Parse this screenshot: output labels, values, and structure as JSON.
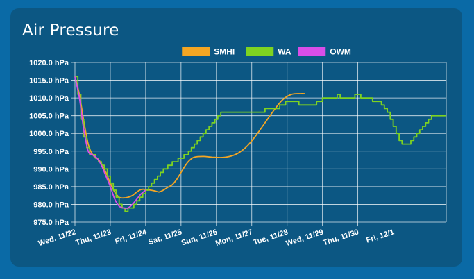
{
  "card": {
    "title": "Air Pressure"
  },
  "colors": {
    "page_bg": "#0a6aa6",
    "card_bg": "#0c5783",
    "grid": "#ffffff",
    "text": "#ffffff"
  },
  "chart_data": {
    "type": "line",
    "title": "Air Pressure",
    "xlabel": "",
    "ylabel": "",
    "grid": true,
    "legend_position": "top-center",
    "y_unit": "hPa",
    "ylim": [
      975.0,
      1020.0
    ],
    "y_ticks": [
      "1020.0 hPa",
      "1015.0 hPa",
      "1010.0 hPa",
      "1005.0 hPa",
      "1000.0 hPa",
      "995.0 hPa",
      "990.0 hPa",
      "985.0 hPa",
      "980.0 hPa",
      "975.0 hPa"
    ],
    "y_tick_values": [
      1020,
      1015,
      1010,
      1005,
      1000,
      995,
      990,
      985,
      980,
      975
    ],
    "xlim": [
      "2023-11-22T00:00",
      "2023-12-02T12:00"
    ],
    "x_ticks": [
      "Wed, 11/22",
      "Thu, 11/23",
      "Fri, 11/24",
      "Sat, 11/25",
      "Sun, 11/26",
      "Mon, 11/27",
      "Tue, 11/28",
      "Wed, 11/29",
      "Thu, 11/30",
      "Fri, 12/1"
    ],
    "x_tick_values": [
      "2023-11-22T00:00",
      "2023-11-23T00:00",
      "2023-11-24T00:00",
      "2023-11-25T00:00",
      "2023-11-26T00:00",
      "2023-11-27T00:00",
      "2023-11-28T00:00",
      "2023-11-29T00:00",
      "2023-11-30T00:00",
      "2023-12-01T00:00"
    ],
    "series": [
      {
        "name": "SMHI",
        "color": "#f5a623",
        "step": false,
        "points": [
          [
            "2023-11-22T00:00",
            1016.0
          ],
          [
            "2023-11-22T03:00",
            1011.0
          ],
          [
            "2023-11-22T06:00",
            1003.5
          ],
          [
            "2023-11-22T09:00",
            997.0
          ],
          [
            "2023-11-22T12:00",
            994.0
          ],
          [
            "2023-11-22T15:00",
            993.0
          ],
          [
            "2023-11-22T18:00",
            991.5
          ],
          [
            "2023-11-22T21:00",
            989.0
          ],
          [
            "2023-11-23T00:00",
            986.0
          ],
          [
            "2023-11-23T03:00",
            983.5
          ],
          [
            "2023-11-23T06:00",
            982.0
          ],
          [
            "2023-11-23T09:00",
            981.8
          ],
          [
            "2023-11-23T12:00",
            982.0
          ],
          [
            "2023-11-23T15:00",
            982.5
          ],
          [
            "2023-11-23T18:00",
            983.5
          ],
          [
            "2023-11-23T21:00",
            984.2
          ],
          [
            "2023-11-24T00:00",
            984.2
          ],
          [
            "2023-11-24T06:00",
            983.8
          ],
          [
            "2023-11-24T09:00",
            983.5
          ],
          [
            "2023-11-24T12:00",
            984.0
          ],
          [
            "2023-11-24T15:00",
            984.8
          ],
          [
            "2023-11-24T18:00",
            985.5
          ],
          [
            "2023-11-24T21:00",
            987.0
          ],
          [
            "2023-11-25T00:00",
            989.0
          ],
          [
            "2023-11-25T03:00",
            991.0
          ],
          [
            "2023-11-25T06:00",
            992.5
          ],
          [
            "2023-11-25T09:00",
            993.3
          ],
          [
            "2023-11-25T15:00",
            993.5
          ],
          [
            "2023-11-25T21:00",
            993.3
          ],
          [
            "2023-11-26T03:00",
            993.2
          ],
          [
            "2023-11-26T09:00",
            993.5
          ],
          [
            "2023-11-26T15:00",
            994.5
          ],
          [
            "2023-11-26T21:00",
            996.5
          ],
          [
            "2023-11-27T03:00",
            999.5
          ],
          [
            "2023-11-27T09:00",
            1003.0
          ],
          [
            "2023-11-27T15:00",
            1006.5
          ],
          [
            "2023-11-27T21:00",
            1009.5
          ],
          [
            "2023-11-28T03:00",
            1011.0
          ],
          [
            "2023-11-28T09:00",
            1011.2
          ],
          [
            "2023-11-28T12:00",
            1011.2
          ]
        ]
      },
      {
        "name": "WA",
        "color": "#7ed321",
        "step": true,
        "points": [
          [
            "2023-11-22T00:00",
            1016.0
          ],
          [
            "2023-11-22T02:00",
            1011.0
          ],
          [
            "2023-11-22T04:00",
            1004.0
          ],
          [
            "2023-11-22T06:00",
            999.0
          ],
          [
            "2023-11-22T08:00",
            996.0
          ],
          [
            "2023-11-22T10:00",
            994.0
          ],
          [
            "2023-11-22T14:00",
            993.0
          ],
          [
            "2023-11-22T16:00",
            992.0
          ],
          [
            "2023-11-22T18:00",
            991.0
          ],
          [
            "2023-11-22T20:00",
            990.0
          ],
          [
            "2023-11-22T22:00",
            988.0
          ],
          [
            "2023-11-23T00:00",
            986.0
          ],
          [
            "2023-11-23T02:00",
            984.0
          ],
          [
            "2023-11-23T04:00",
            982.0
          ],
          [
            "2023-11-23T06:00",
            980.0
          ],
          [
            "2023-11-23T08:00",
            979.0
          ],
          [
            "2023-11-23T10:00",
            978.0
          ],
          [
            "2023-11-23T12:00",
            979.0
          ],
          [
            "2023-11-23T16:00",
            980.0
          ],
          [
            "2023-11-23T18:00",
            981.0
          ],
          [
            "2023-11-23T20:00",
            982.0
          ],
          [
            "2023-11-23T22:00",
            983.0
          ],
          [
            "2023-11-24T00:00",
            984.0
          ],
          [
            "2023-11-24T02:00",
            985.0
          ],
          [
            "2023-11-24T04:00",
            986.0
          ],
          [
            "2023-11-24T06:00",
            987.0
          ],
          [
            "2023-11-24T08:00",
            988.0
          ],
          [
            "2023-11-24T10:00",
            989.0
          ],
          [
            "2023-11-24T12:00",
            990.0
          ],
          [
            "2023-11-24T15:00",
            991.0
          ],
          [
            "2023-11-24T18:00",
            992.0
          ],
          [
            "2023-11-24T22:00",
            993.0
          ],
          [
            "2023-11-25T02:00",
            994.0
          ],
          [
            "2023-11-25T05:00",
            995.0
          ],
          [
            "2023-11-25T07:00",
            996.0
          ],
          [
            "2023-11-25T09:00",
            997.0
          ],
          [
            "2023-11-25T11:00",
            998.0
          ],
          [
            "2023-11-25T13:00",
            999.0
          ],
          [
            "2023-11-25T15:00",
            1000.0
          ],
          [
            "2023-11-25T17:00",
            1001.0
          ],
          [
            "2023-11-25T19:00",
            1002.0
          ],
          [
            "2023-11-25T21:00",
            1003.0
          ],
          [
            "2023-11-25T23:00",
            1004.0
          ],
          [
            "2023-11-26T01:00",
            1005.0
          ],
          [
            "2023-11-26T03:00",
            1006.0
          ],
          [
            "2023-11-27T08:00",
            1006.0
          ],
          [
            "2023-11-27T09:00",
            1007.0
          ],
          [
            "2023-11-27T19:00",
            1008.0
          ],
          [
            "2023-11-27T23:00",
            1009.0
          ],
          [
            "2023-11-28T08:00",
            1008.0
          ],
          [
            "2023-11-28T20:00",
            1009.0
          ],
          [
            "2023-11-29T00:00",
            1010.0
          ],
          [
            "2023-11-29T10:00",
            1011.0
          ],
          [
            "2023-11-29T12:00",
            1010.0
          ],
          [
            "2023-11-29T22:00",
            1011.0
          ],
          [
            "2023-11-30T02:00",
            1010.0
          ],
          [
            "2023-11-30T10:00",
            1009.0
          ],
          [
            "2023-11-30T16:00",
            1008.0
          ],
          [
            "2023-11-30T18:00",
            1007.0
          ],
          [
            "2023-11-30T20:00",
            1006.0
          ],
          [
            "2023-11-30T22:00",
            1004.0
          ],
          [
            "2023-12-01T00:00",
            1002.0
          ],
          [
            "2023-12-01T02:00",
            1000.0
          ],
          [
            "2023-12-01T04:00",
            998.0
          ],
          [
            "2023-12-01T06:00",
            997.0
          ],
          [
            "2023-12-01T12:00",
            998.0
          ],
          [
            "2023-12-01T14:00",
            999.0
          ],
          [
            "2023-12-01T16:00",
            1000.0
          ],
          [
            "2023-12-01T18:00",
            1001.0
          ],
          [
            "2023-12-01T20:00",
            1002.0
          ],
          [
            "2023-12-01T22:00",
            1003.0
          ],
          [
            "2023-12-02T00:00",
            1004.0
          ],
          [
            "2023-12-02T02:00",
            1005.0
          ],
          [
            "2023-12-02T12:00",
            1005.0
          ]
        ]
      },
      {
        "name": "OWM",
        "color": "#d94ee8",
        "step": false,
        "points": [
          [
            "2023-11-22T00:00",
            1016.0
          ],
          [
            "2023-11-22T03:00",
            1010.0
          ],
          [
            "2023-11-22T06:00",
            1001.0
          ],
          [
            "2023-11-22T09:00",
            995.0
          ],
          [
            "2023-11-22T12:00",
            994.0
          ],
          [
            "2023-11-22T15:00",
            993.0
          ],
          [
            "2023-11-22T18:00",
            991.0
          ],
          [
            "2023-11-22T21:00",
            988.0
          ],
          [
            "2023-11-23T00:00",
            985.0
          ],
          [
            "2023-11-23T03:00",
            981.5
          ],
          [
            "2023-11-23T06:00",
            979.5
          ],
          [
            "2023-11-23T09:00",
            979.0
          ],
          [
            "2023-11-23T12:00",
            979.0
          ],
          [
            "2023-11-23T15:00",
            980.0
          ],
          [
            "2023-11-23T18:00",
            981.5
          ],
          [
            "2023-11-23T21:00",
            983.0
          ],
          [
            "2023-11-24T00:00",
            984.0
          ]
        ]
      }
    ]
  }
}
